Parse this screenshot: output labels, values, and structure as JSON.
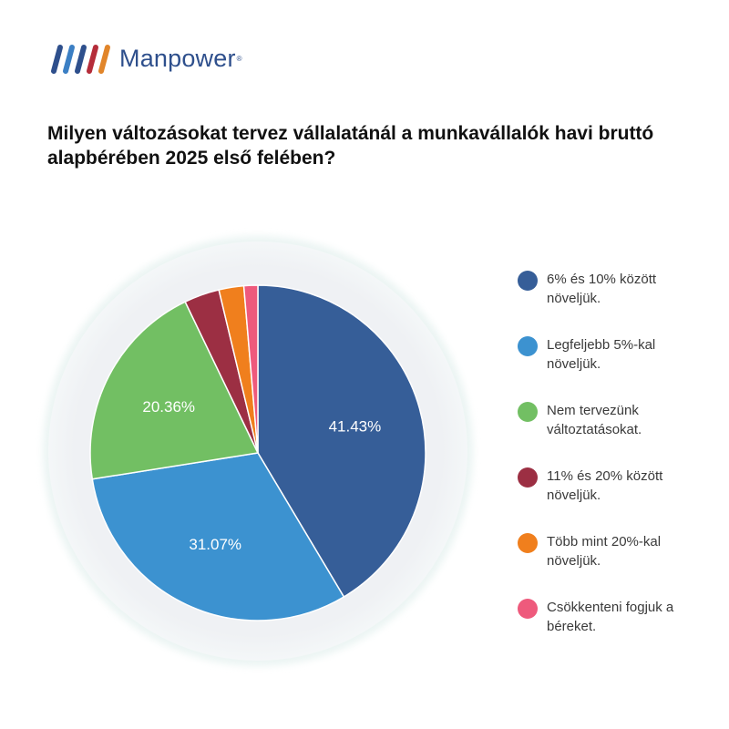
{
  "brand": {
    "name": "Manpower",
    "registered": "®"
  },
  "title": "Milyen változásokat tervez vállalatánál a munkavállalók havi bruttó alapbérében 2025 első felében?",
  "chart_data": {
    "type": "pie",
    "legend_position": "right",
    "slices": [
      {
        "label": "6% és 10% között növeljük.",
        "value": 41.43,
        "display": "41.43%",
        "color": "#365e98"
      },
      {
        "label": "Legfeljebb 5%-kal növeljük.",
        "value": 31.07,
        "display": "31.07%",
        "color": "#3c92d0"
      },
      {
        "label": "Nem tervezünk változtatásokat.",
        "value": 20.36,
        "display": "20.36%",
        "color": "#72bf63"
      },
      {
        "label": "11% és 20% között növeljük.",
        "value": 3.4,
        "display": "",
        "color": "#9c2f43"
      },
      {
        "label": "Több mint 20%-kal növeljük.",
        "value": 2.4,
        "display": "",
        "color": "#f07f1d"
      },
      {
        "label": "Csökkenteni fogjuk a béreket.",
        "value": 1.34,
        "display": "",
        "color": "#ee5a7c"
      }
    ]
  }
}
